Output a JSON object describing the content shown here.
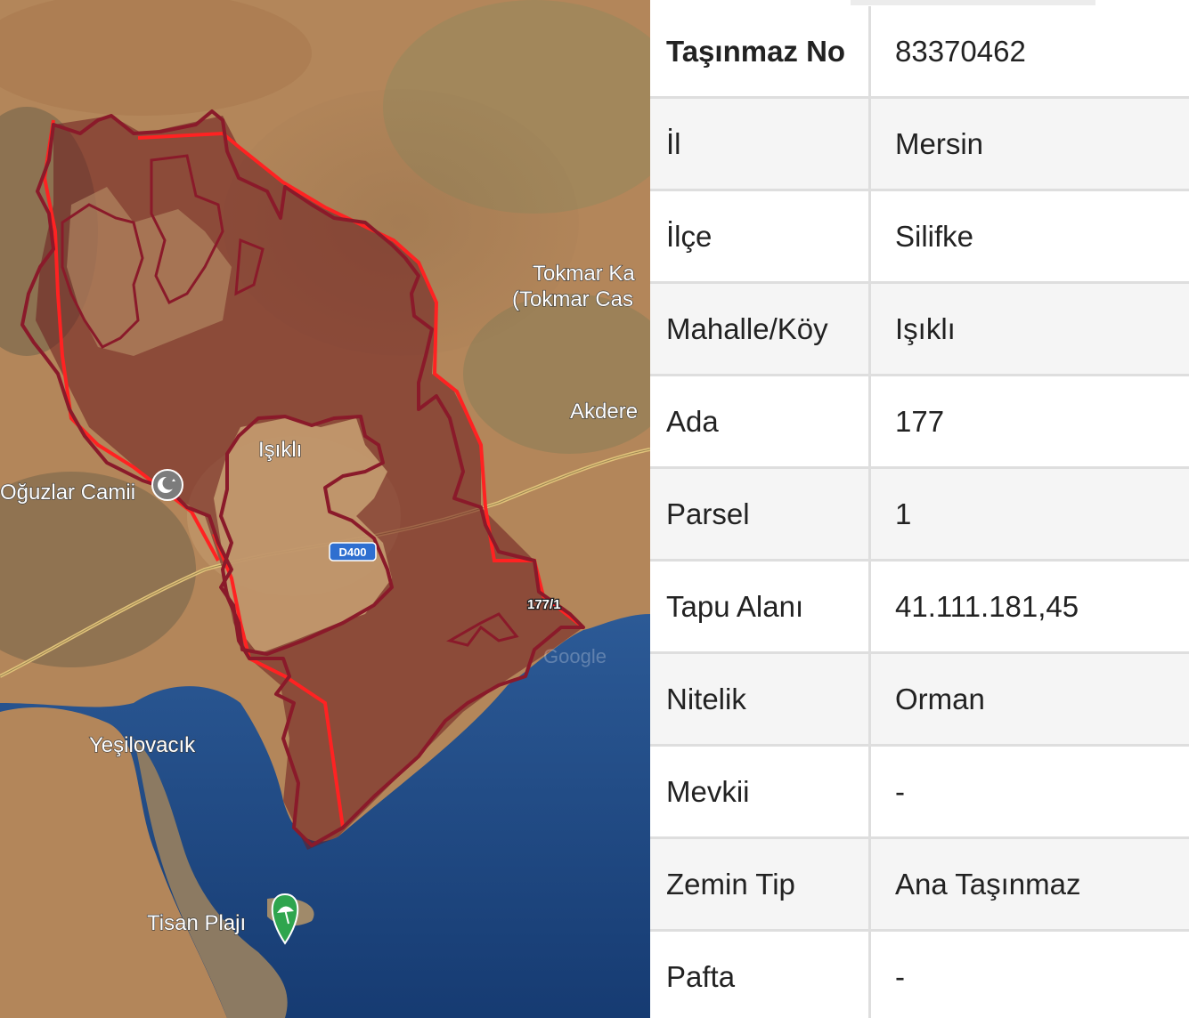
{
  "map": {
    "places": {
      "tokmar_1": "Tokmar Ka",
      "tokmar_2": "(Tokmar Cas",
      "akdere": "Akdere",
      "isikli": "Işıklı",
      "oguzlar": "Oğuzlar Camii",
      "yesilovacik": "Yeşilovacık",
      "tisan": "Tisan Plajı"
    },
    "road_label": "D400",
    "parcel_label": "177/1",
    "watermark": "Google",
    "colors": {
      "land": "#b3865a",
      "sea": "#1f4785",
      "parcel_fill": "#6b1c1f",
      "parcel_outline": "#8a1a2a",
      "boundary_line": "#ff2222"
    },
    "icons": [
      "mosque-icon",
      "beach-icon"
    ]
  },
  "table": {
    "rows": [
      {
        "key": "Taşınmaz No",
        "value": "83370462",
        "bold": true
      },
      {
        "key": "İl",
        "value": "Mersin"
      },
      {
        "key": "İlçe",
        "value": "Silifke"
      },
      {
        "key": "Mahalle/Köy",
        "value": "Işıklı"
      },
      {
        "key": "Ada",
        "value": "177"
      },
      {
        "key": "Parsel",
        "value": "1"
      },
      {
        "key": "Tapu Alanı",
        "value": "41.111.181,45"
      },
      {
        "key": "Nitelik",
        "value": "Orman"
      },
      {
        "key": "Mevkii",
        "value": "-"
      },
      {
        "key": "Zemin Tip",
        "value": "Ana Taşınmaz"
      },
      {
        "key": "Pafta",
        "value": "-"
      }
    ]
  }
}
